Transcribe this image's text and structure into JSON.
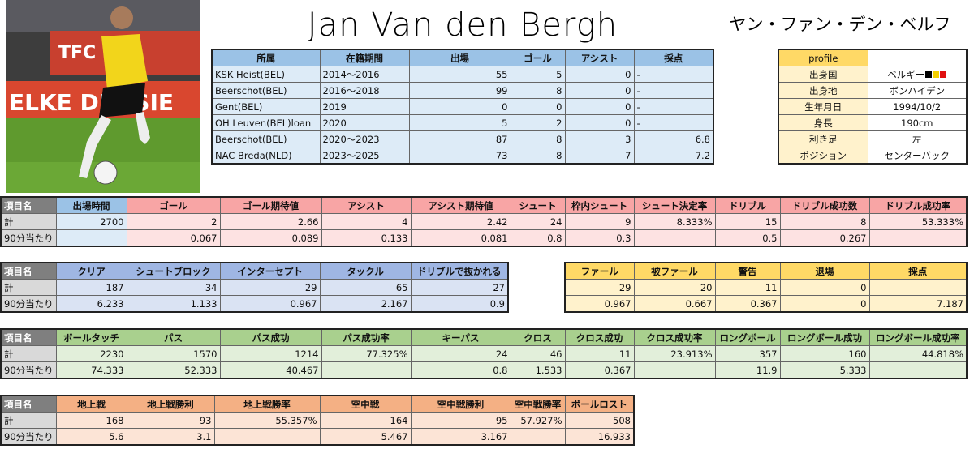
{
  "title": "Jan Van den Bergh",
  "name_kana": "ヤン・ファン・デン・ベルフ",
  "career": {
    "headers": [
      "所属",
      "在籍期間",
      "出場",
      "ゴール",
      "アシスト",
      "採点"
    ],
    "rows": [
      [
        "KSK Heist(BEL)",
        "2014～2016",
        55,
        5,
        0,
        "-"
      ],
      [
        "Beerschot(BEL)",
        "2016～2018",
        99,
        8,
        0,
        "-"
      ],
      [
        "Gent(BEL)",
        "2019",
        0,
        0,
        0,
        "-"
      ],
      [
        "OH Leuven(BEL)loan",
        "2020",
        5,
        2,
        0,
        "-"
      ],
      [
        "Beerschot(BEL)",
        "2020～2023",
        87,
        8,
        3,
        6.8
      ],
      [
        "NAC Breda(NLD)",
        "2023～2025",
        73,
        8,
        7,
        7.2
      ]
    ]
  },
  "profile": {
    "header": "profile",
    "rows": [
      [
        "出身国",
        "ベルギー"
      ],
      [
        "出身地",
        "ボンハイデン"
      ],
      [
        "生年月日",
        "1994/10/2"
      ],
      [
        "身長",
        "190cm"
      ],
      [
        "利き足",
        "左"
      ],
      [
        "ポジション",
        "センターバック"
      ]
    ]
  },
  "stats": [
    {
      "headers": [
        "項目名",
        "出場時間",
        "ゴール",
        "ゴール期待値",
        "アシスト",
        "アシスト期待値",
        "シュート",
        "枠内シュート",
        "シュート決定率",
        "ドリブル",
        "ドリブル成功数",
        "ドリブル成功率"
      ],
      "rows": [
        [
          "計",
          2700,
          2,
          2.66,
          4,
          2.42,
          24,
          9,
          "8.333%",
          15,
          8,
          "53.333%"
        ],
        [
          "90分当たり",
          null,
          0.067,
          0.089,
          0.133,
          0.081,
          0.8,
          0.3,
          null,
          0.5,
          0.267,
          null
        ]
      ]
    },
    {
      "headers": [
        "項目名",
        "クリア",
        "シュートブロック",
        "インターセプト",
        "タックル",
        "ドリブルで抜かれる"
      ],
      "rows": [
        [
          "計",
          187,
          34,
          29,
          65,
          27
        ],
        [
          "90分当たり",
          6.233,
          1.133,
          0.967,
          2.167,
          0.9
        ]
      ]
    },
    {
      "headers": [
        "ファール",
        "被ファール",
        "警告",
        "退場",
        "採点"
      ],
      "rows": [
        [
          29,
          20,
          11,
          0,
          null
        ],
        [
          0.967,
          0.667,
          0.367,
          0,
          7.187
        ]
      ]
    },
    {
      "headers": [
        "項目名",
        "ボールタッチ",
        "パス",
        "パス成功",
        "パス成功率",
        "キーパス",
        "クロス",
        "クロス成功",
        "クロス成功率",
        "ロングボール",
        "ロングボール成功",
        "ロングボール成功率"
      ],
      "rows": [
        [
          "計",
          2230,
          1570,
          1214,
          "77.325%",
          24,
          46,
          11,
          "23.913%",
          357,
          160,
          "44.818%"
        ],
        [
          "90分当たり",
          74.333,
          52.333,
          40.467,
          null,
          0.8,
          1.533,
          0.367,
          null,
          11.9,
          5.333,
          null
        ]
      ]
    },
    {
      "headers": [
        "項目名",
        "地上戦",
        "地上戦勝利",
        "地上戦勝率",
        "空中戦",
        "空中戦勝利",
        "空中戦勝率",
        "ボールロスト"
      ],
      "rows": [
        [
          "計",
          168,
          93,
          "55.357%",
          164,
          95,
          "57.927%",
          508
        ],
        [
          "90分当たり",
          5.6,
          3.1,
          null,
          5.467,
          3.167,
          null,
          16.933
        ]
      ]
    }
  ]
}
